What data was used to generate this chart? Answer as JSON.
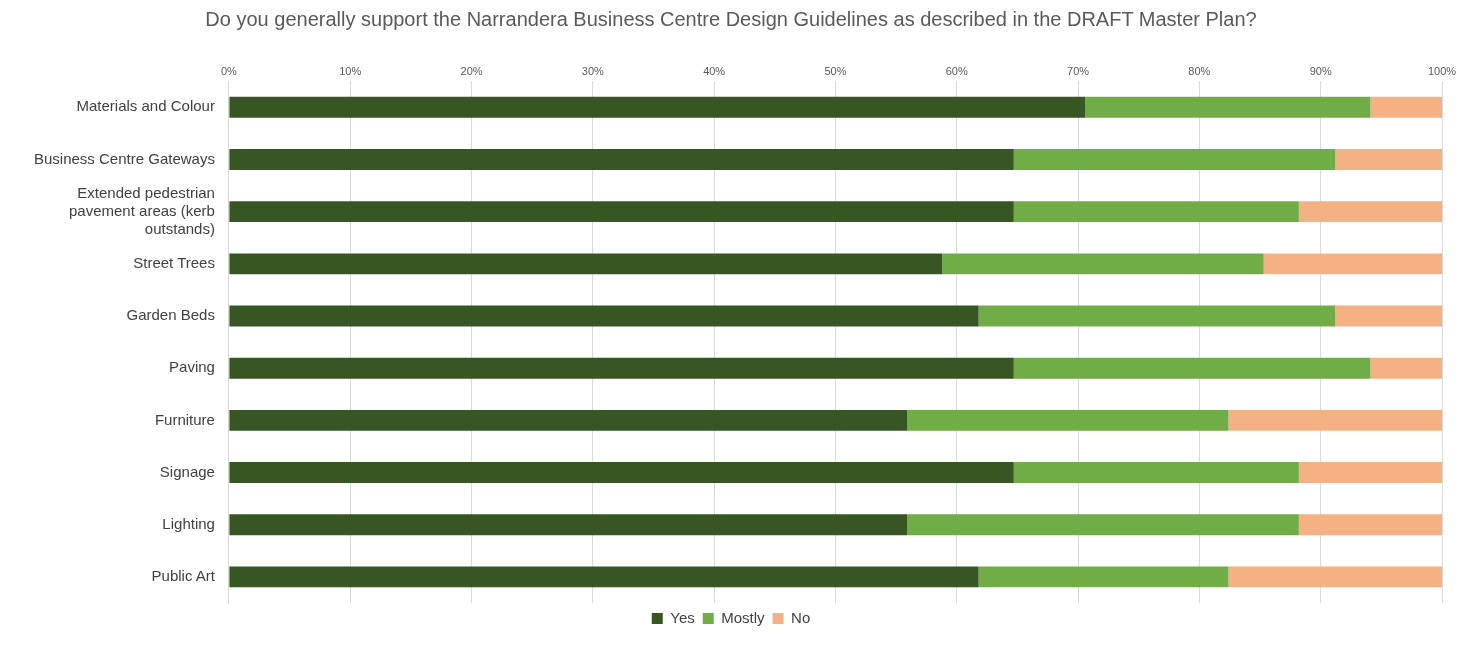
{
  "chart_data": {
    "type": "bar",
    "orientation": "horizontal",
    "stacked": true,
    "title": "Do you generally support the Narrandera Business Centre Design Guidelines as described in the DRAFT Master Plan?",
    "categories": [
      "Materials and Colour",
      "Business Centre Gateways",
      "Extended pedestrian pavement areas (kerb outstands)",
      "Street Trees",
      "Garden Beds",
      "Paving",
      "Furniture",
      "Signage",
      "Lighting",
      "Public Art"
    ],
    "series": [
      {
        "name": "Yes",
        "color": "#375623",
        "values": [
          70.6,
          64.7,
          64.7,
          58.8,
          61.8,
          64.7,
          55.9,
          64.7,
          55.9,
          61.8
        ]
      },
      {
        "name": "Mostly",
        "color": "#70ad47",
        "values": [
          23.5,
          26.5,
          23.5,
          26.5,
          29.4,
          29.4,
          26.5,
          23.5,
          32.3,
          20.6
        ]
      },
      {
        "name": "No",
        "color": "#f4b183",
        "values": [
          5.9,
          8.8,
          11.8,
          14.7,
          8.8,
          5.9,
          17.6,
          11.8,
          11.8,
          17.6
        ]
      }
    ],
    "xlim": [
      0,
      100
    ],
    "xticks": [
      {
        "value": 0,
        "label": "0%"
      },
      {
        "value": 10,
        "label": "10%"
      },
      {
        "value": 20,
        "label": "20%"
      },
      {
        "value": 30,
        "label": "30%"
      },
      {
        "value": 40,
        "label": "40%"
      },
      {
        "value": 50,
        "label": "50%"
      },
      {
        "value": 60,
        "label": "60%"
      },
      {
        "value": 70,
        "label": "70%"
      },
      {
        "value": 80,
        "label": "80%"
      },
      {
        "value": 90,
        "label": "90%"
      },
      {
        "value": 100,
        "label": "100%"
      }
    ],
    "grid": "x",
    "legend": "bottom"
  }
}
